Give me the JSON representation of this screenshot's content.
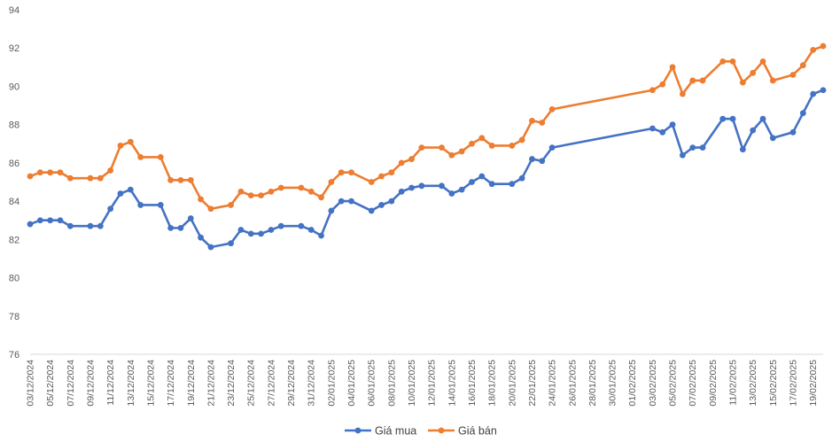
{
  "chart_data": {
    "type": "line",
    "title": "",
    "xlabel": "",
    "ylabel": "",
    "ylim": [
      76,
      94
    ],
    "yticks": [
      76,
      78,
      80,
      82,
      84,
      86,
      88,
      90,
      92,
      94
    ],
    "grid": false,
    "legend_position": "bottom",
    "x_range": [
      "03/12/2024",
      "20/02/2025"
    ],
    "x_tick_labels": [
      "03/12/2024",
      "05/12/2024",
      "07/12/2024",
      "09/12/2024",
      "11/12/2024",
      "13/12/2024",
      "15/12/2024",
      "17/12/2024",
      "19/12/2024",
      "21/12/2024",
      "23/12/2024",
      "25/12/2024",
      "27/12/2024",
      "29/12/2024",
      "31/12/2024",
      "02/01/2025",
      "04/01/2025",
      "06/01/2025",
      "08/01/2025",
      "10/01/2025",
      "12/01/2025",
      "14/01/2025",
      "16/01/2025",
      "18/01/2025",
      "20/01/2025",
      "22/01/2025",
      "24/01/2025",
      "26/01/2025",
      "28/01/2025",
      "30/01/2025",
      "01/02/2025",
      "03/02/2025",
      "05/02/2025",
      "07/02/2025",
      "09/02/2025",
      "11/02/2025",
      "13/02/2025",
      "15/02/2025",
      "17/02/2025",
      "19/02/2025"
    ],
    "series": [
      {
        "name": "Giá mua",
        "color": "#4472C4",
        "points": [
          [
            "03/12/2024",
            82.8
          ],
          [
            "04/12/2024",
            83.0
          ],
          [
            "05/12/2024",
            83.0
          ],
          [
            "06/12/2024",
            83.0
          ],
          [
            "07/12/2024",
            82.7
          ],
          [
            "09/12/2024",
            82.7
          ],
          [
            "10/12/2024",
            82.7
          ],
          [
            "11/12/2024",
            83.6
          ],
          [
            "12/12/2024",
            84.4
          ],
          [
            "13/12/2024",
            84.6
          ],
          [
            "14/12/2024",
            83.8
          ],
          [
            "16/12/2024",
            83.8
          ],
          [
            "17/12/2024",
            82.6
          ],
          [
            "18/12/2024",
            82.6
          ],
          [
            "19/12/2024",
            83.1
          ],
          [
            "20/12/2024",
            82.1
          ],
          [
            "21/12/2024",
            81.6
          ],
          [
            "23/12/2024",
            81.8
          ],
          [
            "24/12/2024",
            82.5
          ],
          [
            "25/12/2024",
            82.3
          ],
          [
            "26/12/2024",
            82.3
          ],
          [
            "27/12/2024",
            82.5
          ],
          [
            "28/12/2024",
            82.7
          ],
          [
            "30/12/2024",
            82.7
          ],
          [
            "31/12/2024",
            82.5
          ],
          [
            "01/01/2025",
            82.2
          ],
          [
            "02/01/2025",
            83.5
          ],
          [
            "03/01/2025",
            84.0
          ],
          [
            "04/01/2025",
            84.0
          ],
          [
            "06/01/2025",
            83.5
          ],
          [
            "07/01/2025",
            83.8
          ],
          [
            "08/01/2025",
            84.0
          ],
          [
            "09/01/2025",
            84.5
          ],
          [
            "10/01/2025",
            84.7
          ],
          [
            "11/01/2025",
            84.8
          ],
          [
            "13/01/2025",
            84.8
          ],
          [
            "14/01/2025",
            84.4
          ],
          [
            "15/01/2025",
            84.6
          ],
          [
            "16/01/2025",
            85.0
          ],
          [
            "17/01/2025",
            85.3
          ],
          [
            "18/01/2025",
            84.9
          ],
          [
            "20/01/2025",
            84.9
          ],
          [
            "21/01/2025",
            85.2
          ],
          [
            "22/01/2025",
            86.2
          ],
          [
            "23/01/2025",
            86.1
          ],
          [
            "24/01/2025",
            86.8
          ],
          [
            "03/02/2025",
            87.8
          ],
          [
            "04/02/2025",
            87.6
          ],
          [
            "05/02/2025",
            88.0
          ],
          [
            "06/02/2025",
            86.4
          ],
          [
            "07/02/2025",
            86.8
          ],
          [
            "08/02/2025",
            86.8
          ],
          [
            "10/02/2025",
            88.3
          ],
          [
            "11/02/2025",
            88.3
          ],
          [
            "12/02/2025",
            86.7
          ],
          [
            "13/02/2025",
            87.7
          ],
          [
            "14/02/2025",
            88.3
          ],
          [
            "15/02/2025",
            87.3
          ],
          [
            "17/02/2025",
            87.6
          ],
          [
            "18/02/2025",
            88.6
          ],
          [
            "19/02/2025",
            89.6
          ],
          [
            "20/02/2025",
            89.8
          ]
        ]
      },
      {
        "name": "Giá bán",
        "color": "#ED7D31",
        "points": [
          [
            "03/12/2024",
            85.3
          ],
          [
            "04/12/2024",
            85.5
          ],
          [
            "05/12/2024",
            85.5
          ],
          [
            "06/12/2024",
            85.5
          ],
          [
            "07/12/2024",
            85.2
          ],
          [
            "09/12/2024",
            85.2
          ],
          [
            "10/12/2024",
            85.2
          ],
          [
            "11/12/2024",
            85.6
          ],
          [
            "12/12/2024",
            86.9
          ],
          [
            "13/12/2024",
            87.1
          ],
          [
            "14/12/2024",
            86.3
          ],
          [
            "16/12/2024",
            86.3
          ],
          [
            "17/12/2024",
            85.1
          ],
          [
            "18/12/2024",
            85.1
          ],
          [
            "19/12/2024",
            85.1
          ],
          [
            "20/12/2024",
            84.1
          ],
          [
            "21/12/2024",
            83.6
          ],
          [
            "23/12/2024",
            83.8
          ],
          [
            "24/12/2024",
            84.5
          ],
          [
            "25/12/2024",
            84.3
          ],
          [
            "26/12/2024",
            84.3
          ],
          [
            "27/12/2024",
            84.5
          ],
          [
            "28/12/2024",
            84.7
          ],
          [
            "30/12/2024",
            84.7
          ],
          [
            "31/12/2024",
            84.5
          ],
          [
            "01/01/2025",
            84.2
          ],
          [
            "02/01/2025",
            85.0
          ],
          [
            "03/01/2025",
            85.5
          ],
          [
            "04/01/2025",
            85.5
          ],
          [
            "06/01/2025",
            85.0
          ],
          [
            "07/01/2025",
            85.3
          ],
          [
            "08/01/2025",
            85.5
          ],
          [
            "09/01/2025",
            86.0
          ],
          [
            "10/01/2025",
            86.2
          ],
          [
            "11/01/2025",
            86.8
          ],
          [
            "13/01/2025",
            86.8
          ],
          [
            "14/01/2025",
            86.4
          ],
          [
            "15/01/2025",
            86.6
          ],
          [
            "16/01/2025",
            87.0
          ],
          [
            "17/01/2025",
            87.3
          ],
          [
            "18/01/2025",
            86.9
          ],
          [
            "20/01/2025",
            86.9
          ],
          [
            "21/01/2025",
            87.2
          ],
          [
            "22/01/2025",
            88.2
          ],
          [
            "23/01/2025",
            88.1
          ],
          [
            "24/01/2025",
            88.8
          ],
          [
            "03/02/2025",
            89.8
          ],
          [
            "04/02/2025",
            90.1
          ],
          [
            "05/02/2025",
            91.0
          ],
          [
            "06/02/2025",
            89.6
          ],
          [
            "07/02/2025",
            90.3
          ],
          [
            "08/02/2025",
            90.3
          ],
          [
            "10/02/2025",
            91.3
          ],
          [
            "11/02/2025",
            91.3
          ],
          [
            "12/02/2025",
            90.2
          ],
          [
            "13/02/2025",
            90.7
          ],
          [
            "14/02/2025",
            91.3
          ],
          [
            "15/02/2025",
            90.3
          ],
          [
            "17/02/2025",
            90.6
          ],
          [
            "18/02/2025",
            91.1
          ],
          [
            "19/02/2025",
            91.9
          ],
          [
            "20/02/2025",
            92.1
          ]
        ]
      }
    ]
  }
}
